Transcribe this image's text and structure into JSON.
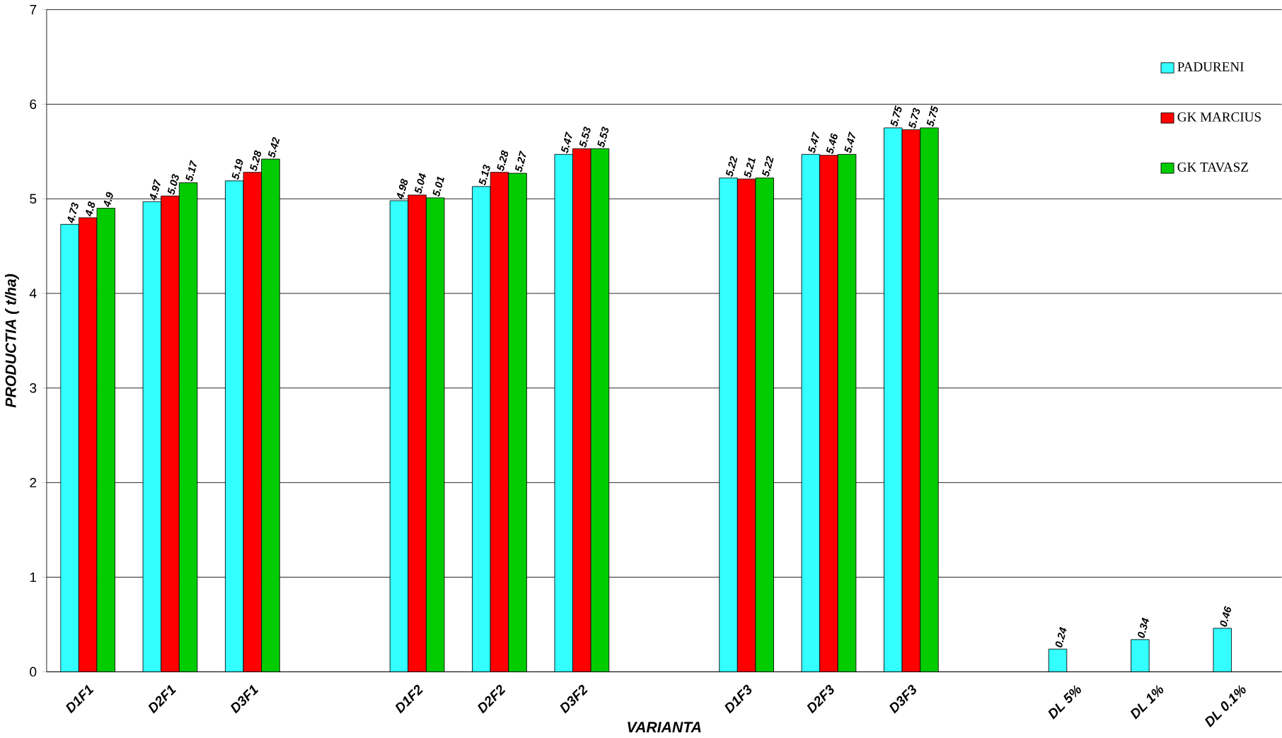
{
  "chart_data": {
    "type": "bar",
    "xlabel": "VARIANTA",
    "ylabel": "PRODUCTIA ( t/ha)",
    "categories": [
      "D1F1",
      "D2F1",
      "D3F1",
      null,
      "D1F2",
      "D2F2",
      "D3F2",
      null,
      "D1F3",
      "D2F3",
      "D3F3",
      null,
      "DL 5%",
      "DL 1%",
      "DL 0.1%"
    ],
    "series": [
      {
        "name": "PADURENI",
        "color": "#33ffff",
        "values": [
          4.73,
          4.97,
          5.19,
          null,
          4.98,
          5.13,
          5.47,
          null,
          5.22,
          5.47,
          5.75,
          null,
          0.24,
          0.34,
          0.46
        ]
      },
      {
        "name": "GK MARCIUS",
        "color": "#ff0000",
        "values": [
          4.8,
          5.03,
          5.28,
          null,
          5.04,
          5.28,
          5.53,
          null,
          5.21,
          5.46,
          5.73,
          null,
          null,
          null,
          null
        ]
      },
      {
        "name": "GK TAVASZ",
        "color": "#00cc00",
        "values": [
          4.9,
          5.17,
          5.42,
          null,
          5.01,
          5.27,
          5.53,
          null,
          5.22,
          5.47,
          5.75,
          null,
          null,
          null,
          null
        ]
      }
    ],
    "ylim": [
      0,
      7
    ],
    "yticks": [
      0,
      1,
      2,
      3,
      4,
      5,
      6,
      7
    ],
    "grid": "y",
    "legend": "top right",
    "data_labels": true
  }
}
